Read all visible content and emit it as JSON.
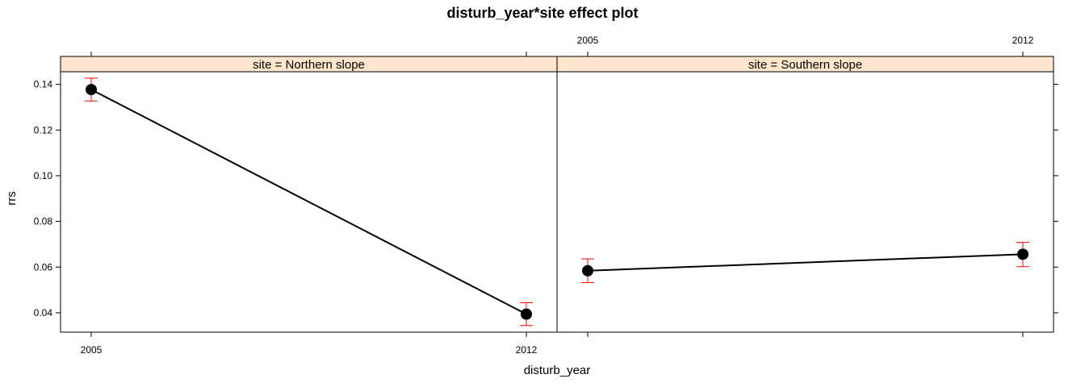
{
  "chart_data": {
    "type": "line",
    "title": "disturb_year*site effect plot",
    "xlabel": "disturb_year",
    "ylabel": "rrs",
    "x_ticks": [
      "2005",
      "2012"
    ],
    "y_ticks": [
      "0.04",
      "0.06",
      "0.08",
      "0.10",
      "0.12",
      "0.14"
    ],
    "ylim": [
      0.0315,
      0.1455
    ],
    "panels": [
      {
        "strip": "site = Northern slope",
        "points": [
          {
            "x": "2005",
            "y": 0.1377,
            "lower": 0.1327,
            "upper": 0.1427
          },
          {
            "x": "2012",
            "y": 0.0394,
            "lower": 0.0344,
            "upper": 0.0444
          }
        ]
      },
      {
        "strip": "site = Southern slope",
        "points": [
          {
            "x": "2005",
            "y": 0.0584,
            "lower": 0.0532,
            "upper": 0.0636
          },
          {
            "x": "2012",
            "y": 0.0656,
            "lower": 0.0602,
            "upper": 0.0708
          }
        ]
      }
    ],
    "colors": {
      "line": "#000000",
      "point": "#000000",
      "error_bar": "#ff0000",
      "strip_fill": "#ffe5cc"
    },
    "grid": false,
    "legend": "none"
  }
}
